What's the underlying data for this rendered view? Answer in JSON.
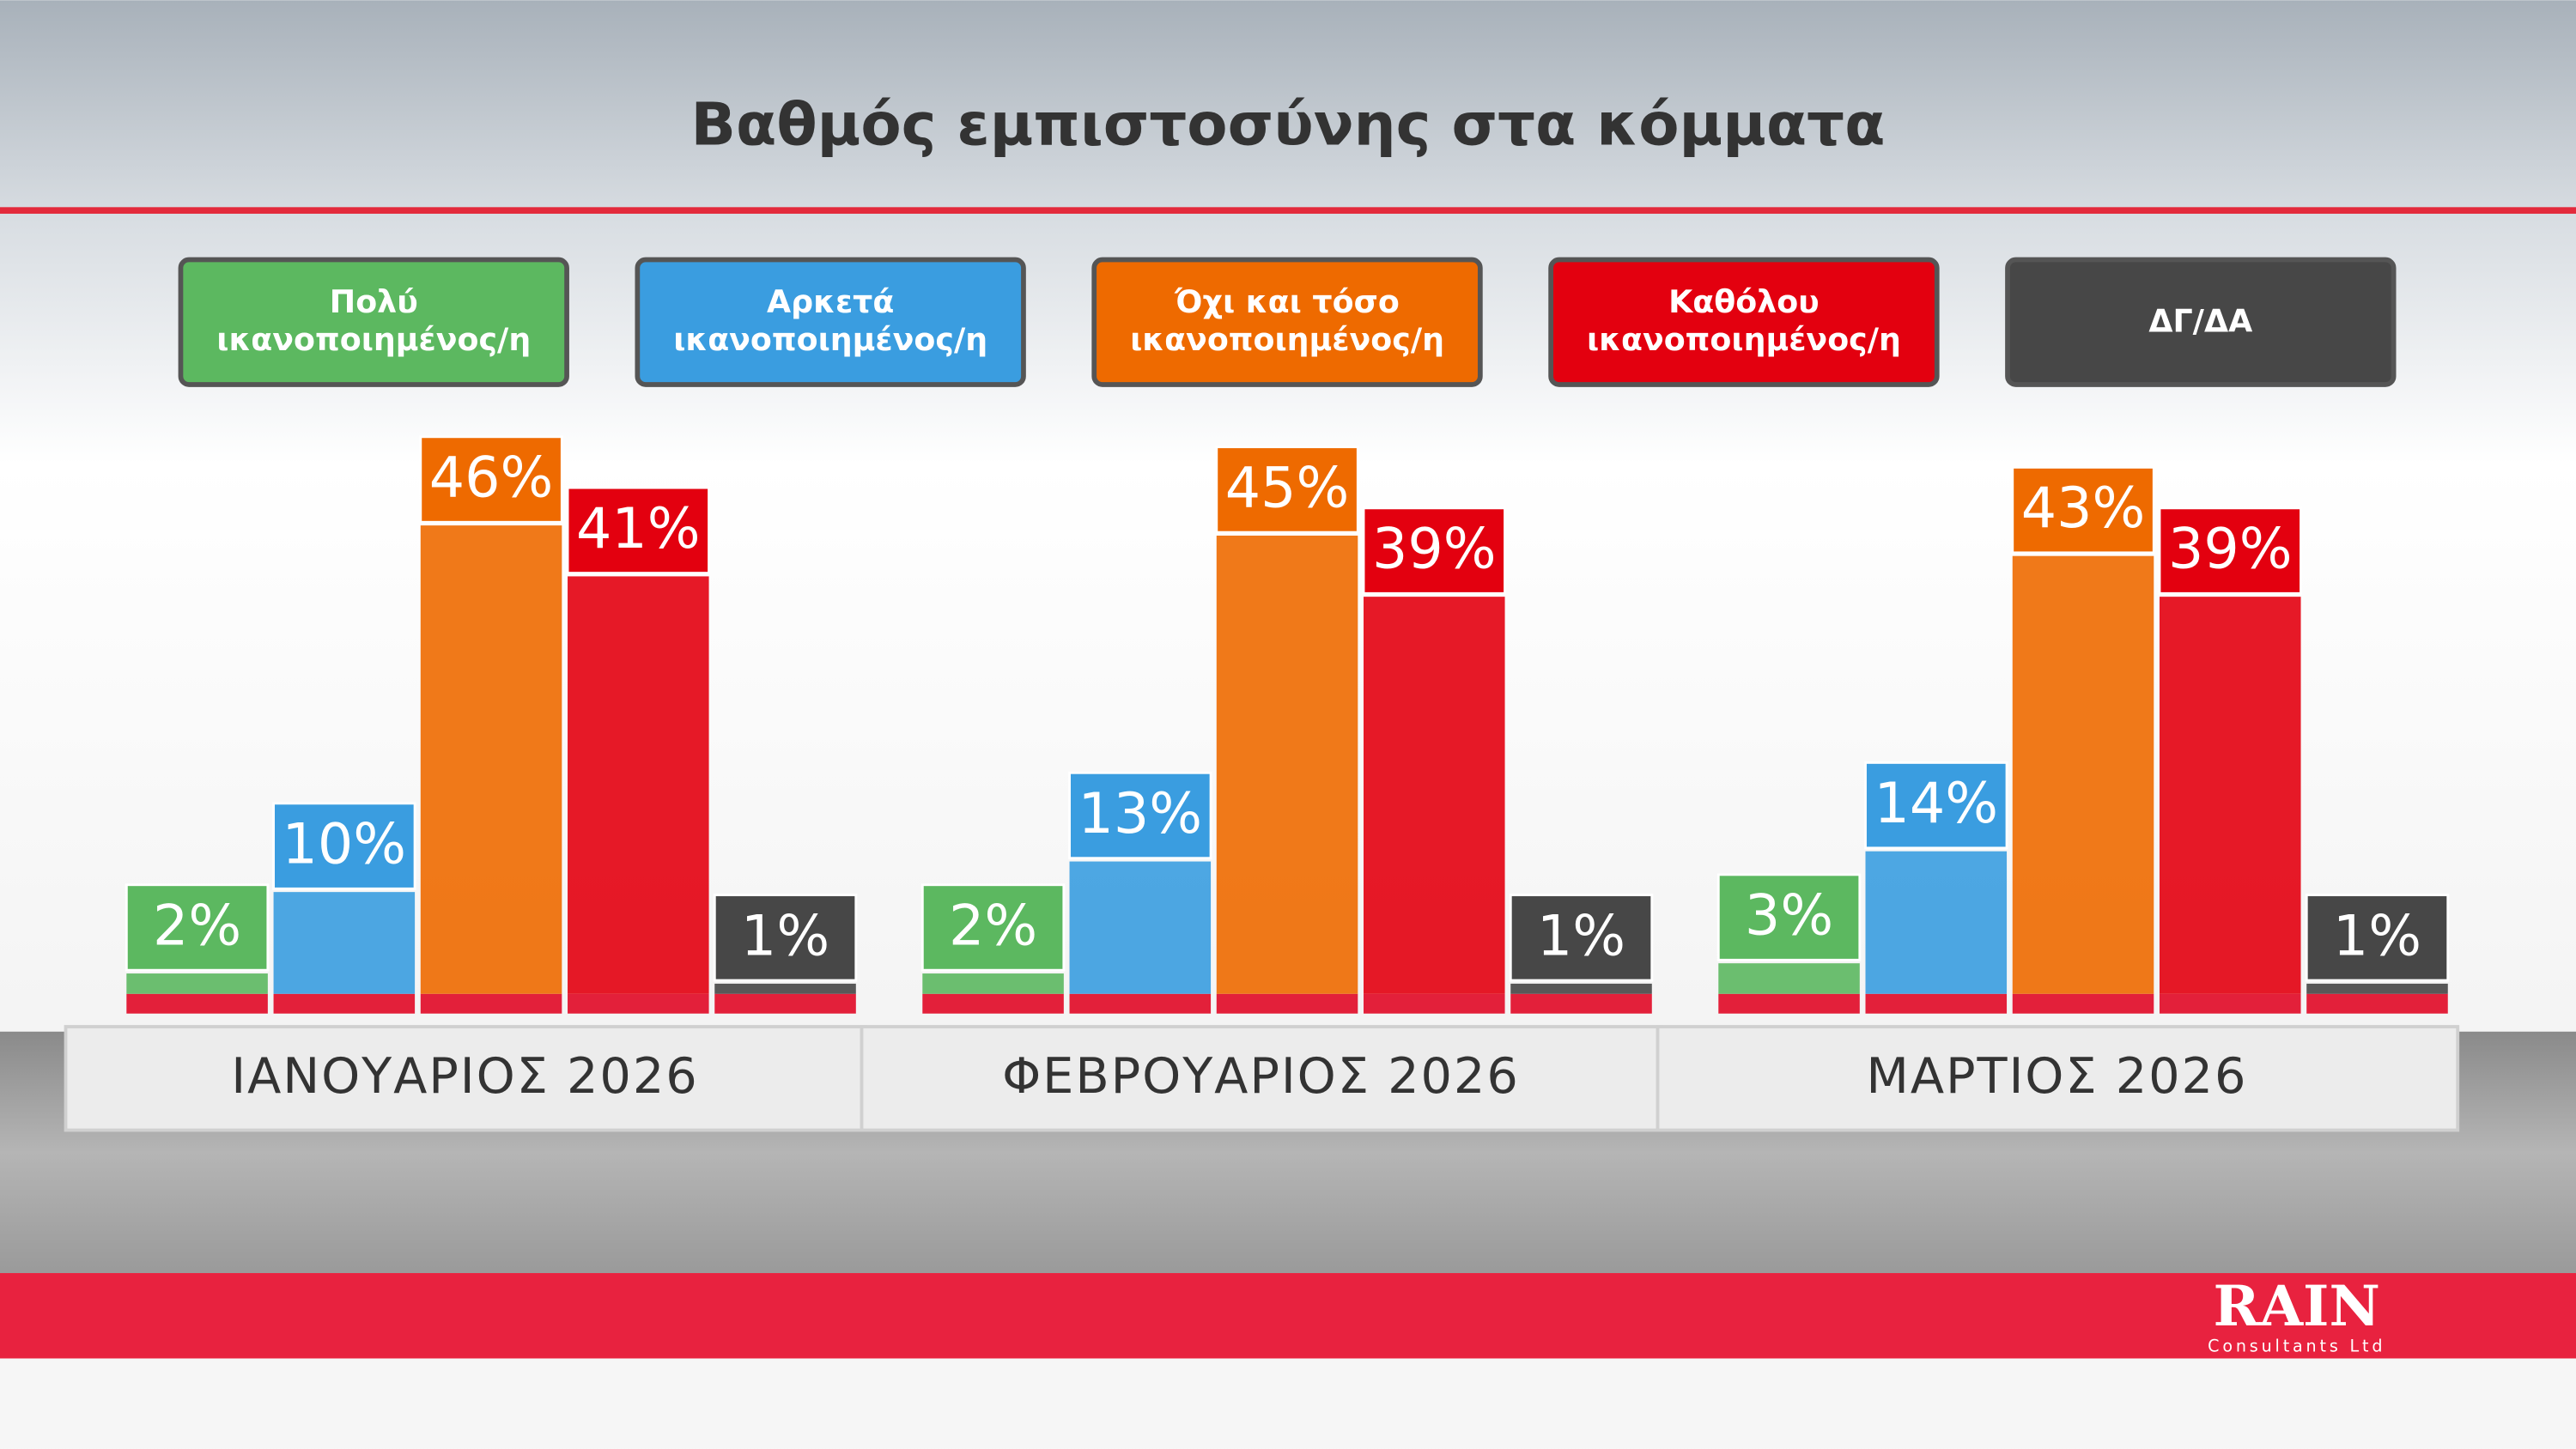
{
  "chart_data": {
    "type": "bar",
    "title": "Βαθμός εμπιστοσύνης στα κόμματα",
    "categories": [
      "ΙΑΝΟΥΑΡΙΟΣ 2026",
      "ΦΕΒΡΟΥΑΡΙΟΣ 2026",
      "ΜΑΡΤΙΟΣ 2026"
    ],
    "series": [
      {
        "name": "Πολύ ικανοποιημένος/η",
        "color": "#5cb860",
        "values": [
          2,
          2,
          3
        ],
        "value_labels": [
          "2%",
          "2%",
          "3%"
        ]
      },
      {
        "name": "Αρκετά ικανοποιημένος/η",
        "color": "#3a9de0",
        "values": [
          10,
          13,
          14
        ],
        "value_labels": [
          "10%",
          "13%",
          "14%"
        ]
      },
      {
        "name": "Όχι και τόσο ικανοποιημένος/η",
        "color": "#ee6a00",
        "values": [
          46,
          45,
          43
        ],
        "value_labels": [
          "46%",
          "45%",
          "43%"
        ]
      },
      {
        "name": "Καθόλου ικανοποιημένος/η",
        "color": "#e3000f",
        "values": [
          41,
          39,
          39
        ],
        "value_labels": [
          "41%",
          "39%",
          "39%"
        ]
      },
      {
        "name": "ΔΓ/ΔΑ",
        "color": "#474747",
        "values": [
          1,
          1,
          1
        ],
        "value_labels": [
          "1%",
          "1%",
          "1%"
        ]
      }
    ]
  },
  "brand": {
    "logo": "RAIN",
    "sub": "Consultants Ltd"
  }
}
